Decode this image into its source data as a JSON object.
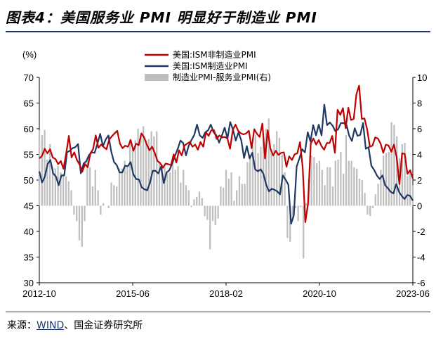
{
  "header": {
    "title": "图表4：美国服务业 PMI 明显好于制造业 PMI"
  },
  "footer": {
    "source_label": "来源：",
    "source_wind": "WIND",
    "source_rest": "、国金证券研究所"
  },
  "chart_data": {
    "type": "line",
    "title": "图表4：美国服务业 PMI 明显好于制造业 PMI",
    "ylabel": "(%)",
    "ylim": [
      30,
      70
    ],
    "y2lim": [
      -6,
      10
    ],
    "yticks": [
      "70",
      "65",
      "60",
      "55",
      "50",
      "45",
      "40",
      "35",
      "30"
    ],
    "y2ticks": [
      "10",
      "8",
      "6",
      "4",
      "2",
      "0",
      "-2",
      "-4",
      "-6"
    ],
    "xticks": [
      "2012-10",
      "2015-06",
      "2018-02",
      "2020-10",
      "2023-06"
    ],
    "x_start": "2012-10",
    "x_end": "2023-06",
    "legend": {
      "placement": "top-center",
      "items": [
        "美国:ISM非制造业PMI",
        "美国:ISM制造业PMI",
        "制造业PMI-服务业PMI(右)"
      ]
    },
    "colors": {
      "services": "#c00000",
      "manufacturing": "#1f3864",
      "diff": "#bfbfbf"
    },
    "series": [
      {
        "name": "美国:ISM非制造业PMI",
        "axis": "left",
        "type": "line",
        "values": [
          54.2,
          54.7,
          56.1,
          55.2,
          56.0,
          54.4,
          54.1,
          53.1,
          53.7,
          52.2,
          55.2,
          58.6,
          54.4,
          55.4,
          53.9,
          53.0,
          51.6,
          53.1,
          52.5,
          55.2,
          56.0,
          58.7,
          56.3,
          56.9,
          56.4,
          56.0,
          57.9,
          58.5,
          59.1,
          59.6,
          57.1,
          56.2,
          56.7,
          56.5,
          57.8,
          55.7,
          57.1,
          56.8,
          59.1,
          58.3,
          56.9,
          55.8,
          56.5,
          55.2,
          53.7,
          53.3,
          52.4,
          53.2,
          53.1,
          52.9,
          55.0,
          53.4,
          55.8,
          54.8,
          56.7,
          57.1,
          57.4,
          56.5,
          56.9,
          55.9,
          57.4,
          56.5,
          59.3,
          58.6,
          59.7,
          59.7,
          58.0,
          58.7,
          58.3,
          58.4,
          58.1,
          56.1,
          59.8,
          60.8,
          59.6,
          59.1,
          58.9,
          59.1,
          59.6,
          56.2,
          59.9,
          59.0,
          58.4,
          61.0,
          54.2,
          59.7,
          56.1,
          54.8,
          55.7,
          54.9,
          55.3,
          55.4,
          52.6,
          54.6,
          53.9,
          55.0,
          55.2,
          57.4,
          52.5,
          41.8,
          45.4,
          57.1,
          58.1,
          56.9,
          57.8,
          56.6,
          55.9,
          57.2,
          57.2,
          58.6,
          55.3,
          63.7,
          62.7,
          64.0,
          60.1,
          64.1,
          61.7,
          61.9,
          66.7,
          68.4,
          61.9,
          62.0,
          59.9,
          56.5,
          56.7,
          58.3,
          58.1,
          57.1,
          55.3,
          56.9,
          56.7,
          55.5,
          56.9,
          54.4,
          49.2,
          55.2,
          55.1,
          51.2,
          51.9,
          50.3
        ]
      },
      {
        "name": "美国:ISM制造业PMI",
        "axis": "left",
        "type": "line",
        "values": [
          51.7,
          49.5,
          50.7,
          53.1,
          53.9,
          51.3,
          50.7,
          49.0,
          50.9,
          50.9,
          55.4,
          55.7,
          56.2,
          56.4,
          57.0,
          51.3,
          53.2,
          53.7,
          54.9,
          55.4,
          55.3,
          57.1,
          59.0,
          56.6,
          57.9,
          58.7,
          55.5,
          53.5,
          52.9,
          51.5,
          51.5,
          52.8,
          52.7,
          53.5,
          51.1,
          50.2,
          50.1,
          48.6,
          48.2,
          48.0,
          49.5,
          51.8,
          51.8,
          51.3,
          52.6,
          49.4,
          51.5,
          51.9,
          53.2,
          54.7,
          56.0,
          57.7,
          57.2,
          54.8,
          56.7,
          57.8,
          58.8,
          60.8,
          58.7,
          58.2,
          59.3,
          59.7,
          60.8,
          59.3,
          58.7,
          57.3,
          58.7,
          60.2,
          58.1,
          61.3,
          59.8,
          57.7,
          59.3,
          57.7,
          54.3,
          56.6,
          54.2,
          55.3,
          52.1,
          51.7,
          52.1,
          51.2,
          49.1,
          47.8,
          48.3,
          48.1,
          47.8,
          47.2,
          50.9,
          50.1,
          49.1,
          41.5,
          43.1,
          52.6,
          54.2,
          56.0,
          55.4,
          59.3,
          57.5,
          60.7,
          58.7,
          60.8,
          58.7,
          64.7,
          60.7,
          61.2,
          60.6,
          59.5,
          59.9,
          61.1,
          61.1,
          60.8,
          58.6,
          57.6,
          60.1,
          58.6,
          58.8,
          61.1,
          56.1,
          56.4,
          52.8,
          52.0,
          50.9,
          50.2,
          50.9,
          49.0,
          48.4,
          47.7,
          47.4,
          49.2,
          47.7,
          46.9,
          46.3,
          47.1,
          46.9,
          46.0
        ]
      },
      {
        "name": "制造业PMI-服务业PMI(右)",
        "axis": "right",
        "type": "bar",
        "values": [
          5.9,
          5.5,
          5.9,
          3.6,
          4.8,
          3.0,
          2.9,
          3.1,
          2.6,
          2.4,
          2.3,
          1.9,
          1.2,
          -0.7,
          -1.2,
          -2.7,
          -3.2,
          -1.2,
          3.5,
          3.0,
          1.5,
          2.8,
          1.2,
          -0.7,
          0.2,
          0.0,
          -0.2,
          1.8,
          1.6,
          1.5,
          2.9,
          2.9,
          3.5,
          3.1,
          5.2,
          4.4,
          5.1,
          6.0,
          5.4,
          6.2,
          5.1,
          5.2,
          5.8,
          5.4,
          5.8,
          3.4,
          3.2,
          3.0,
          2.7,
          2.6,
          3.5,
          2.8,
          3.1,
          1.8,
          2.8,
          1.6,
          1.2,
          -0.1,
          0.5,
          0.7,
          1.1,
          0.6,
          -0.8,
          -1.1,
          -3.4,
          -1.2,
          -1.5,
          -1.0,
          1.5,
          1.4,
          2.8,
          2.1,
          2.6,
          0.4,
          1.2,
          2.3,
          1.7,
          1.7,
          3.4,
          4.0,
          4.7,
          5.5,
          4.1,
          4.6,
          5.3,
          6.0,
          6.8,
          4.4,
          4.8,
          5.8,
          5.3,
          4.0,
          2.6,
          -2.5,
          -2.8,
          -1.0,
          -0.2,
          -1.2,
          -0.1,
          -4.1,
          0.2,
          2.1,
          3.9,
          3.8,
          3.3,
          3.5,
          2.8,
          1.6,
          3.0,
          3.0,
          1.5,
          3.5,
          3.6,
          4.2,
          2.5,
          5.5,
          3.5,
          3.5,
          3.0,
          2.9,
          2.1,
          2.0,
          1.0,
          -0.7,
          -0.8,
          -0.2,
          0.9,
          1.7,
          2.8,
          3.9,
          4.1,
          4.2,
          6.5,
          6.3,
          5.4,
          3.7,
          4.8,
          4.9,
          2.3,
          2.7,
          1.6
        ]
      }
    ]
  }
}
